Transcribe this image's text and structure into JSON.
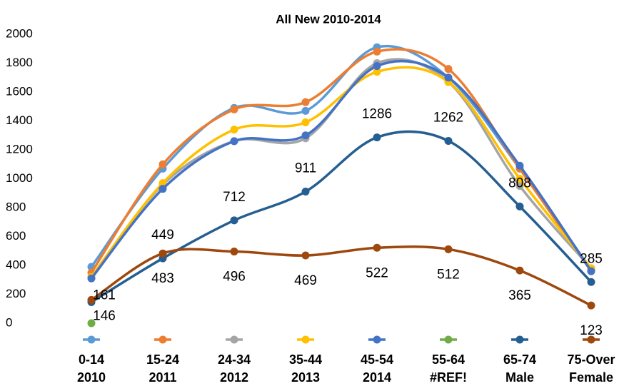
{
  "chart_data": {
    "type": "line",
    "title": "All New 2010-2014",
    "categories": [
      "0-14",
      "15-24",
      "24-34",
      "35-44",
      "45-54",
      "55-64",
      "65-74",
      "75-Over"
    ],
    "series": [
      {
        "name": "2010",
        "color": "#5b9bd5",
        "values": [
          390,
          1070,
          1490,
          1470,
          1910,
          1700,
          1070,
          370
        ]
      },
      {
        "name": "2011",
        "color": "#ed7d31",
        "values": [
          350,
          1100,
          1480,
          1530,
          1880,
          1760,
          1070,
          360
        ]
      },
      {
        "name": "2012",
        "color": "#a5a5a5",
        "values": [
          320,
          960,
          1260,
          1280,
          1800,
          1670,
          950,
          380
        ]
      },
      {
        "name": "2013",
        "color": "#ffc000",
        "values": [
          320,
          970,
          1340,
          1390,
          1740,
          1670,
          1000,
          380
        ]
      },
      {
        "name": "2014",
        "color": "#4472c4",
        "values": [
          310,
          930,
          1260,
          1300,
          1780,
          1700,
          1090,
          360
        ]
      },
      {
        "name": "#REF!",
        "color": "#70ad47",
        "values": [
          0,
          null,
          null,
          null,
          null,
          null,
          null,
          null
        ]
      },
      {
        "name": "Male",
        "color": "#255e91",
        "values": [
          146,
          449,
          712,
          911,
          1286,
          1262,
          808,
          285
        ],
        "data_labels": true
      },
      {
        "name": "Female",
        "color": "#9e480e",
        "values": [
          161,
          483,
          496,
          469,
          522,
          512,
          365,
          123
        ],
        "data_labels": true
      }
    ],
    "ylim": [
      0,
      2000
    ],
    "yticks": [
      0,
      200,
      400,
      600,
      800,
      1000,
      1200,
      1400,
      1600,
      1800,
      2000
    ],
    "grid": false,
    "legend": "bottom"
  }
}
